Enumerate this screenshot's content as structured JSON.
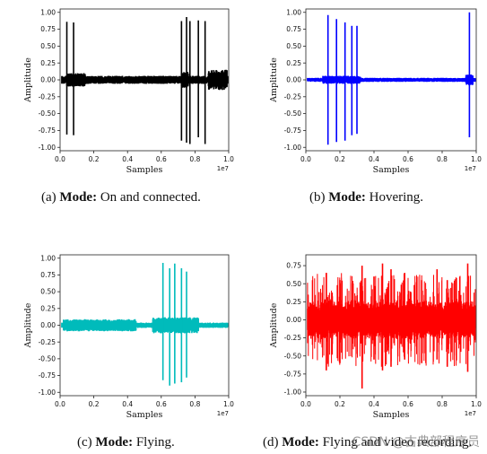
{
  "chart_data": [
    {
      "type": "line",
      "panel": "a",
      "color": "#000000",
      "xlabel": "Samples",
      "ylabel": "Amplitude",
      "x_offset_text": "1e7",
      "xlim": [
        0,
        1.0
      ],
      "ylim": [
        -1.05,
        1.05
      ],
      "xticks": [
        "0.0",
        "0.2",
        "0.4",
        "0.6",
        "0.8",
        "1.0"
      ],
      "yticks": [
        "1.00",
        "0.75",
        "0.50",
        "0.25",
        "0.00",
        "-0.25",
        "-0.50",
        "-0.75",
        "-1.00"
      ],
      "noise_level": 0.06,
      "bursts": [
        [
          0.04,
          0.15,
          0.1
        ],
        [
          0.72,
          0.76,
          0.12
        ],
        [
          0.88,
          0.99,
          0.15
        ]
      ],
      "spikes": [
        [
          0.04,
          0.86,
          -0.81
        ],
        [
          0.08,
          0.85,
          -0.82
        ],
        [
          0.72,
          0.87,
          -0.9
        ],
        [
          0.75,
          0.93,
          -0.93
        ],
        [
          0.77,
          0.87,
          -0.95
        ],
        [
          0.82,
          0.88,
          -0.85
        ],
        [
          0.86,
          0.87,
          -0.95
        ]
      ],
      "caption": {
        "label": "(a)",
        "mode": "Mode:",
        "text": "On and connected."
      }
    },
    {
      "type": "line",
      "panel": "b",
      "color": "#0000ff",
      "xlabel": "Samples",
      "ylabel": "Amplitude",
      "x_offset_text": "1e7",
      "xlim": [
        0,
        1.0
      ],
      "ylim": [
        -1.05,
        1.05
      ],
      "xticks": [
        "0.0",
        "0.2",
        "0.4",
        "0.6",
        "0.8",
        "1.0"
      ],
      "yticks": [
        "1.00",
        "0.75",
        "0.50",
        "0.25",
        "0.00",
        "-0.25",
        "-0.50",
        "-0.75",
        "-1.00"
      ],
      "noise_level": 0.03,
      "bursts": [
        [
          0.1,
          0.32,
          0.06
        ],
        [
          0.94,
          0.98,
          0.08
        ]
      ],
      "spikes": [
        [
          0.13,
          0.96,
          -0.96
        ],
        [
          0.18,
          0.9,
          -0.92
        ],
        [
          0.23,
          0.85,
          -0.9
        ],
        [
          0.27,
          0.8,
          -0.82
        ],
        [
          0.3,
          0.8,
          -0.8
        ],
        [
          0.96,
          1.0,
          -0.85
        ]
      ],
      "caption": {
        "label": "(b)",
        "mode": "Mode:",
        "text": "Hovering."
      }
    },
    {
      "type": "line",
      "panel": "c",
      "color": "#00bbbb",
      "xlabel": "Samples",
      "ylabel": "Amplitude",
      "x_offset_text": "1e7",
      "xlim": [
        0,
        1.0
      ],
      "ylim": [
        -1.05,
        1.05
      ],
      "xticks": [
        "0.0",
        "0.2",
        "0.4",
        "0.6",
        "0.8",
        "1.0"
      ],
      "yticks": [
        "1.00",
        "0.75",
        "0.50",
        "0.25",
        "0.00",
        "-0.25",
        "-0.50",
        "-0.75",
        "-1.00"
      ],
      "noise_level": 0.04,
      "bursts": [
        [
          0.02,
          0.45,
          0.09
        ],
        [
          0.55,
          0.82,
          0.12
        ]
      ],
      "spikes": [
        [
          0.61,
          0.93,
          -0.82
        ],
        [
          0.65,
          0.85,
          -0.9
        ],
        [
          0.68,
          0.92,
          -0.87
        ],
        [
          0.72,
          0.85,
          -0.85
        ],
        [
          0.75,
          0.8,
          -0.78
        ]
      ],
      "caption": {
        "label": "(c)",
        "mode": "Mode:",
        "text": "Flying."
      }
    },
    {
      "type": "line",
      "panel": "d",
      "color": "#ff0000",
      "xlabel": "Samples",
      "ylabel": "Amplitude",
      "x_offset_text": "1e7",
      "xlim": [
        0,
        1.0
      ],
      "ylim": [
        -1.05,
        0.9
      ],
      "xticks": [
        "0.0",
        "0.2",
        "0.4",
        "0.6",
        "0.8",
        "1.0"
      ],
      "yticks": [
        "0.75",
        "0.50",
        "0.25",
        "0.00",
        "-0.25",
        "-0.50",
        "-0.75",
        "-1.00"
      ],
      "noise_level": 0.25,
      "bursts": [],
      "spikes": [
        [
          0.12,
          0.65,
          -0.7
        ],
        [
          0.2,
          0.55,
          -0.6
        ],
        [
          0.33,
          0.75,
          -0.95
        ],
        [
          0.4,
          0.6,
          -0.55
        ],
        [
          0.45,
          0.78,
          -0.7
        ],
        [
          0.5,
          0.7,
          -0.65
        ],
        [
          0.58,
          0.65,
          -0.55
        ],
        [
          0.68,
          0.55,
          -0.6
        ],
        [
          0.77,
          0.7,
          -0.55
        ],
        [
          0.83,
          0.55,
          -0.65
        ],
        [
          0.95,
          0.78,
          -0.72
        ]
      ],
      "dense": true,
      "caption": {
        "label": "(d)",
        "mode": "Mode:",
        "text": "Flying and video recording."
      }
    }
  ],
  "watermark": "CSDN @古典部程序员"
}
